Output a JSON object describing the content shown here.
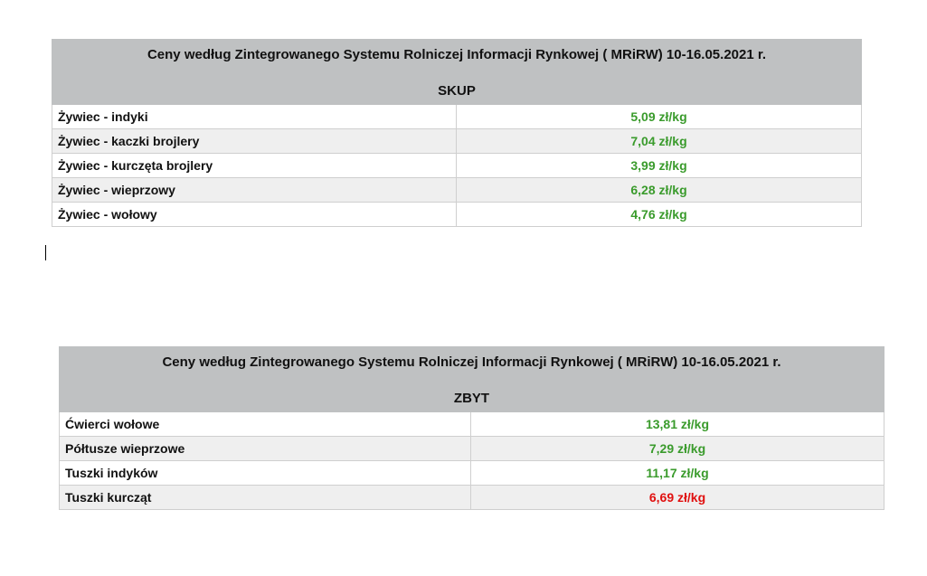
{
  "skup_table": {
    "title": "Ceny według Zintegrowanego Systemu Rolniczej Informacji Rynkowej ( MRiRW) 10-16.05.2021 r.",
    "subtitle": "SKUP",
    "rows": [
      {
        "name": "Żywiec - indyki",
        "price": "5,09 zł/kg",
        "color": "#3a9b2c"
      },
      {
        "name": "Żywiec - kaczki brojlery",
        "price": "7,04 zł/kg",
        "color": "#3a9b2c"
      },
      {
        "name": "Żywiec - kurczęta brojlery",
        "price": "3,99 zł/kg",
        "color": "#3a9b2c"
      },
      {
        "name": "Żywiec - wieprzowy",
        "price": "6,28 zł/kg",
        "color": "#3a9b2c"
      },
      {
        "name": "Żywiec - wołowy",
        "price": "4,76 zł/kg",
        "color": "#3a9b2c"
      }
    ]
  },
  "zbyt_table": {
    "title": "Ceny według Zintegrowanego Systemu Rolniczej Informacji Rynkowej ( MRiRW) 10-16.05.2021 r.",
    "subtitle": "ZBYT",
    "rows": [
      {
        "name": "Ćwierci wołowe",
        "price": "13,81 zł/kg",
        "color": "#3a9b2c"
      },
      {
        "name": "Półtusze wieprzowe",
        "price": "7,29 zł/kg",
        "color": "#3a9b2c"
      },
      {
        "name": "Tuszki indyków",
        "price": "11,17 zł/kg",
        "color": "#3a9b2c"
      },
      {
        "name": "Tuszki kurcząt",
        "price": "6,69 zł/kg",
        "color": "#e0100f"
      }
    ]
  }
}
